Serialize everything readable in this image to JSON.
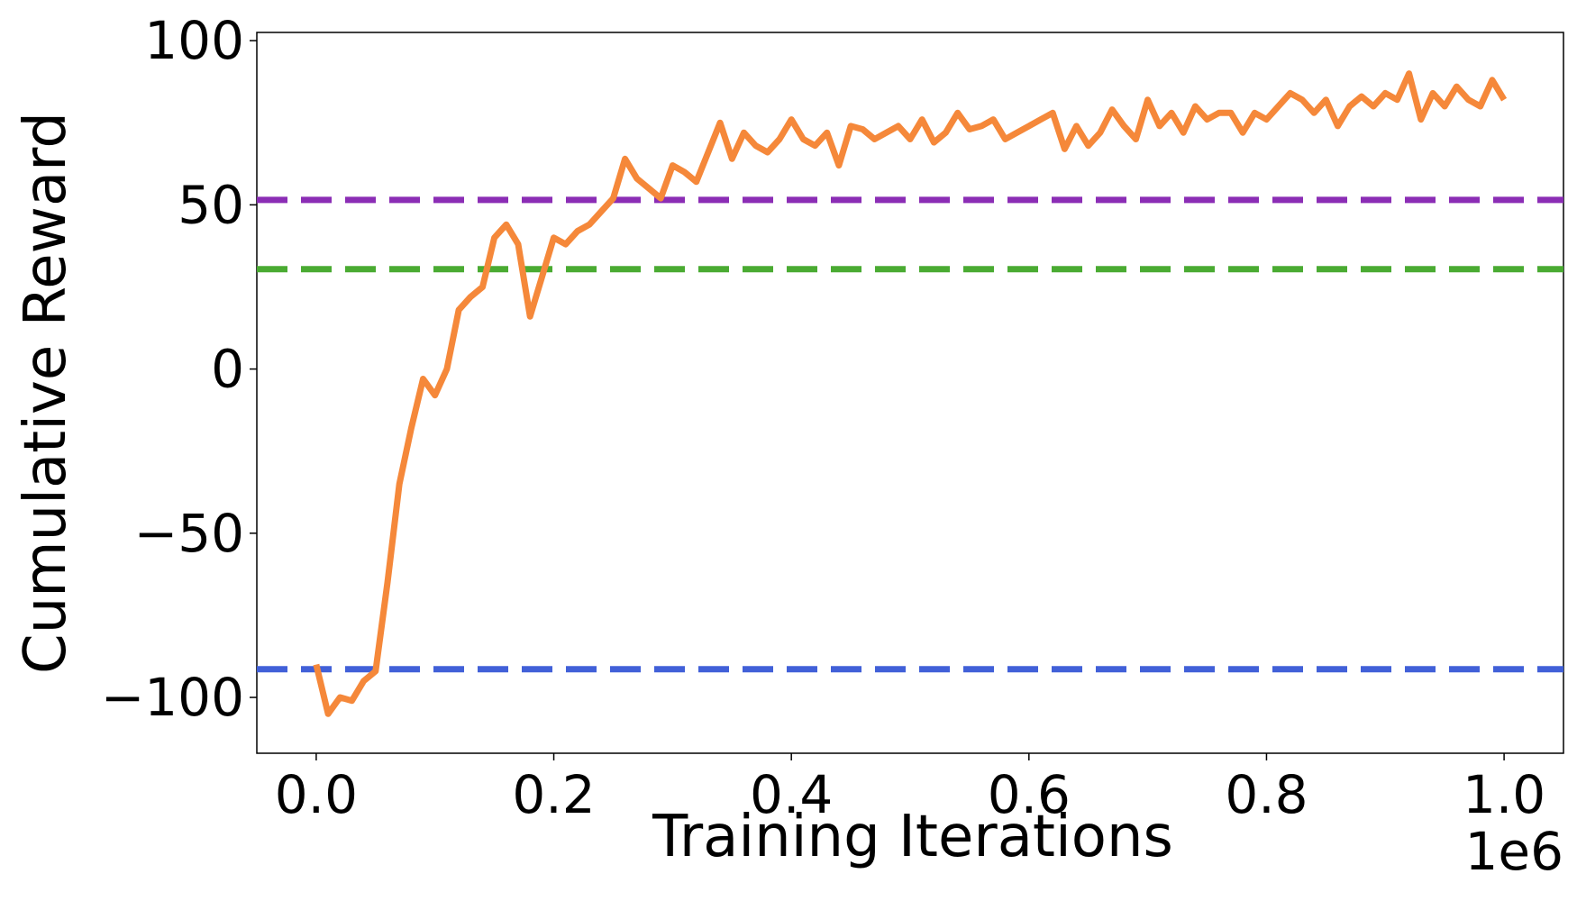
{
  "chart_data": {
    "type": "line",
    "xlabel": "Training Iterations",
    "ylabel": "Cumulative Reward",
    "x_offset_label": "1e6",
    "xlim": [
      -0.05,
      1.05
    ],
    "ylim": [
      -117,
      102.5
    ],
    "xticks": [
      {
        "value": 0,
        "label": "0.0"
      },
      0.2,
      0.4,
      0.6,
      0.8,
      {
        "value": 1,
        "label": "1.0"
      }
    ],
    "yticks": [
      {
        "value": -100,
        "label": "−100"
      },
      {
        "value": -50,
        "label": "−50"
      },
      0,
      50,
      100
    ],
    "x": [
      0,
      0.01,
      0.02,
      0.03,
      0.04,
      0.05,
      0.06,
      0.07,
      0.08,
      0.09,
      0.1,
      0.11,
      0.12,
      0.13,
      0.14,
      0.15,
      0.16,
      0.17,
      0.18,
      0.19,
      0.2,
      0.21,
      0.22,
      0.23,
      0.24,
      0.25,
      0.26,
      0.27,
      0.28,
      0.29,
      0.3,
      0.31,
      0.32,
      0.33,
      0.34,
      0.35,
      0.36,
      0.37,
      0.38,
      0.39,
      0.4,
      0.41,
      0.42,
      0.43,
      0.44,
      0.45,
      0.46,
      0.47,
      0.48,
      0.49,
      0.5,
      0.51,
      0.52,
      0.53,
      0.54,
      0.55,
      0.56,
      0.57,
      0.58,
      0.59,
      0.6,
      0.61,
      0.62,
      0.63,
      0.64,
      0.65,
      0.66,
      0.67,
      0.68,
      0.69,
      0.7,
      0.71,
      0.72,
      0.73,
      0.74,
      0.75,
      0.76,
      0.77,
      0.78,
      0.79,
      0.8,
      0.81,
      0.82,
      0.83,
      0.84,
      0.85,
      0.86,
      0.87,
      0.88,
      0.89,
      0.9,
      0.91,
      0.92,
      0.93,
      0.94,
      0.95,
      0.96,
      0.97,
      0.98,
      0.99,
      1
    ],
    "series": [
      {
        "color": "#f5883a",
        "values": [
          -90,
          -105,
          -100,
          -101,
          -95,
          -92,
          -65,
          -35,
          -18,
          -3,
          -8,
          0,
          18,
          22,
          25,
          40,
          44,
          38,
          16,
          28,
          40,
          38,
          42,
          44,
          48,
          52,
          64,
          58,
          55,
          52,
          62,
          60,
          57,
          66,
          75,
          64,
          72,
          68,
          66,
          70,
          76,
          70,
          68,
          72,
          62,
          74,
          73,
          70,
          72,
          74,
          70,
          76,
          69,
          72,
          78,
          73,
          74,
          76,
          70,
          72,
          74,
          76,
          78,
          67,
          74,
          68,
          72,
          79,
          74,
          70,
          82,
          74,
          78,
          72,
          80,
          76,
          78,
          78,
          72,
          78,
          76,
          80,
          84,
          82,
          78,
          82,
          74,
          80,
          83,
          80,
          84,
          82,
          90,
          76,
          84,
          80,
          86,
          82,
          80,
          88,
          82
        ]
      }
    ],
    "hlines": [
      {
        "value": 51.5,
        "color": "#8b2db5"
      },
      {
        "value": 30.4,
        "color": "#4aab32"
      },
      {
        "value": -91.4,
        "color": "#4160d8"
      }
    ]
  }
}
